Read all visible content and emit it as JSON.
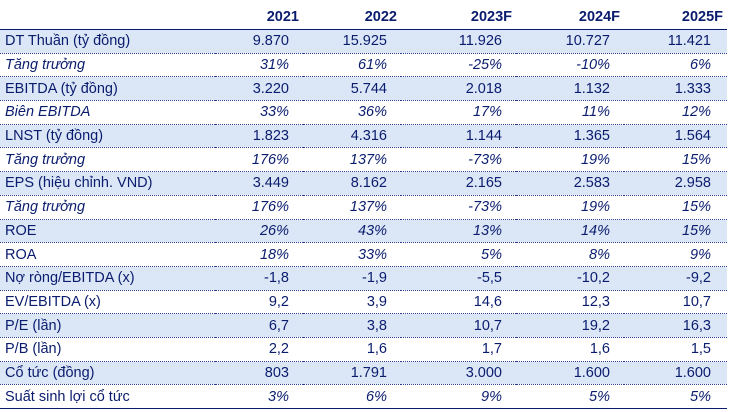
{
  "table": {
    "header": [
      "",
      "2021",
      "2022",
      "2023F",
      "2024F",
      "2025F"
    ],
    "rows": [
      {
        "label": "DT Thuần (tỷ đồng)",
        "values": [
          "9.870",
          "15.925",
          "11.926",
          "10.727",
          "11.421"
        ],
        "italic": false,
        "shaded": true
      },
      {
        "label": "Tăng trưởng",
        "values": [
          "31%",
          "61%",
          "-25%",
          "-10%",
          "6%"
        ],
        "italic": true,
        "shaded": false
      },
      {
        "label": "EBITDA (tỷ đồng)",
        "values": [
          "3.220",
          "5.744",
          "2.018",
          "1.132",
          "1.333"
        ],
        "italic": false,
        "shaded": true
      },
      {
        "label": "Biên EBITDA",
        "values": [
          "33%",
          "36%",
          "17%",
          "11%",
          "12%"
        ],
        "italic": true,
        "shaded": false
      },
      {
        "label": "LNST (tỷ đồng)",
        "values": [
          "1.823",
          "4.316",
          "1.144",
          "1.365",
          "1.564"
        ],
        "italic": false,
        "shaded": true
      },
      {
        "label": "Tăng trưởng",
        "values": [
          "176%",
          "137%",
          "-73%",
          "19%",
          "15%"
        ],
        "italic": true,
        "shaded": false
      },
      {
        "label": "EPS (hiệu chỉnh. VND)",
        "values": [
          "3.449",
          "8.162",
          "2.165",
          "2.583",
          "2.958"
        ],
        "italic": false,
        "shaded": true
      },
      {
        "label": "Tăng trưởng",
        "values": [
          "176%",
          "137%",
          "-73%",
          "19%",
          "15%"
        ],
        "italic": true,
        "shaded": false
      },
      {
        "label": "ROE",
        "values": [
          "26%",
          "43%",
          "13%",
          "14%",
          "15%"
        ],
        "italic": false,
        "shaded": true,
        "italic_values": true
      },
      {
        "label": "ROA",
        "values": [
          "18%",
          "33%",
          "5%",
          "8%",
          "9%"
        ],
        "italic": false,
        "shaded": false,
        "italic_values": true
      },
      {
        "label": "Nợ ròng/EBITDA (x)",
        "values": [
          "-1,8",
          "-1,9",
          "-5,5",
          "-10,2",
          "-9,2"
        ],
        "italic": false,
        "shaded": true
      },
      {
        "label": "EV/EBITDA (x)",
        "values": [
          "9,2",
          "3,9",
          "14,6",
          "12,3",
          "10,7"
        ],
        "italic": false,
        "shaded": false
      },
      {
        "label": "P/E (lần)",
        "values": [
          "6,7",
          "3,8",
          "10,7",
          "19,2",
          "16,3"
        ],
        "italic": false,
        "shaded": true
      },
      {
        "label": "P/B (lần)",
        "values": [
          "2,2",
          "1,6",
          "1,7",
          "1,6",
          "1,5"
        ],
        "italic": false,
        "shaded": false
      },
      {
        "label": "Cổ tức (đồng)",
        "values": [
          "803",
          "1.791",
          "3.000",
          "1.600",
          "1.600"
        ],
        "italic": false,
        "shaded": true
      },
      {
        "label": "Suất sinh lợi cổ tức",
        "values": [
          "3%",
          "6%",
          "9%",
          "5%",
          "5%"
        ],
        "italic": false,
        "shaded": false,
        "italic_values": true
      }
    ]
  }
}
